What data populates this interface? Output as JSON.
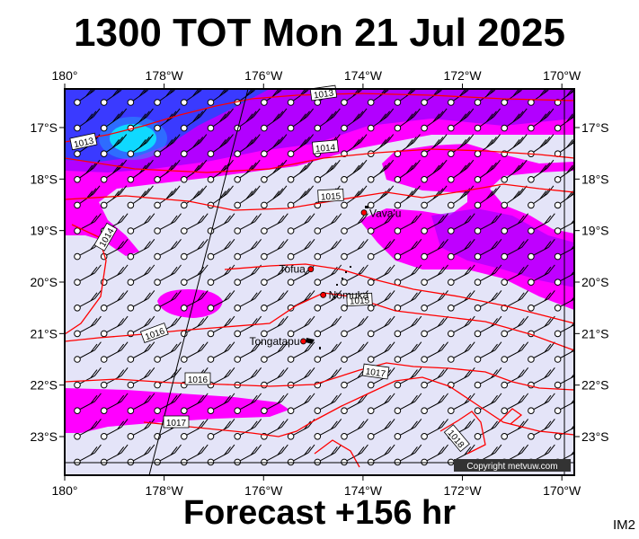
{
  "title": "1300 TOT Mon 21 Jul 2025",
  "forecast": "Forecast +156 hr",
  "image_tag": "IM2",
  "copyright": "Copyright metvuw.com",
  "longitude_labels": [
    "180°",
    "178°W",
    "176°W",
    "174°W",
    "172°W",
    "170°W"
  ],
  "latitude_labels": [
    "17°S",
    "18°S",
    "19°S",
    "20°S",
    "21°S",
    "22°S",
    "23°S"
  ],
  "places": [
    {
      "name": "Vava'u",
      "lon": -173.98,
      "lat": -18.65
    },
    {
      "name": "Tofua",
      "lon": -175.05,
      "lat": -19.75
    },
    {
      "name": "Nomuka",
      "lon": -174.8,
      "lat": -20.25
    },
    {
      "name": "Tongatapu",
      "lon": -175.2,
      "lat": -21.15
    }
  ],
  "isobar_labels": [
    "1013",
    "1013",
    "1014",
    "1015",
    "1014",
    "1015",
    "1016",
    "1016",
    "1017",
    "1017",
    "1018"
  ],
  "colors": {
    "calm_fill": "#e4e4f8",
    "wind_magenta": "#ff00ff",
    "wind_violet": "#a400ff",
    "wind_blue": "#3a3aff",
    "wind_cyan": "#00ffff",
    "isobar": "#ff0000",
    "frame": "#000000"
  }
}
